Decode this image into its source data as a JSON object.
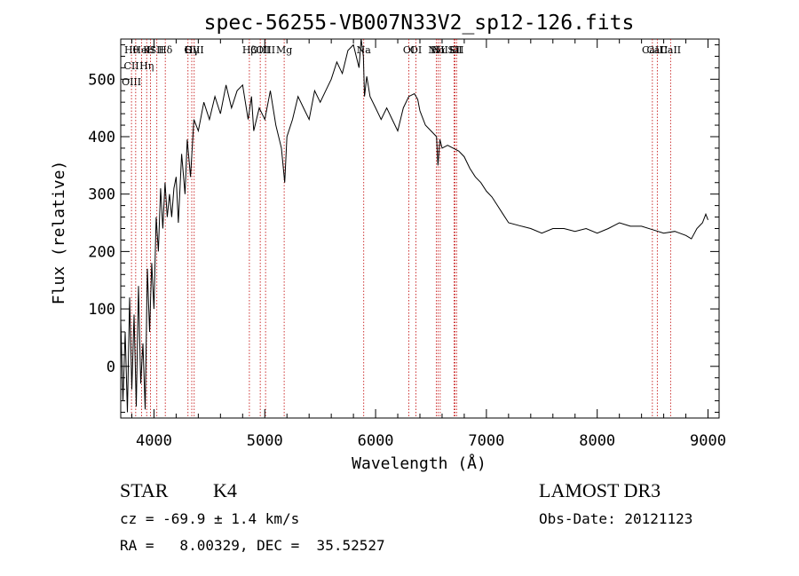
{
  "chart_data": {
    "type": "line",
    "title": "spec-56255-VB007N33V2_sp12-126.fits",
    "xlabel": "Wavelength (Å)",
    "ylabel": "Flux (relative)",
    "xlim": [
      3700,
      9100
    ],
    "ylim": [
      -90,
      570
    ],
    "xticks": [
      4000,
      5000,
      6000,
      7000,
      8000,
      9000
    ],
    "yticks": [
      0,
      100,
      200,
      300,
      400,
      500
    ],
    "grid": false,
    "line_color": "#000000",
    "marker_color": "#c00000",
    "series": [
      {
        "x": [
          3700,
          3720,
          3740,
          3760,
          3780,
          3800,
          3820,
          3840,
          3860,
          3880,
          3900,
          3920,
          3940,
          3960,
          3980,
          4000,
          4020,
          4040,
          4060,
          4080,
          4100,
          4120,
          4140,
          4160,
          4180,
          4200,
          4220,
          4250,
          4280,
          4300,
          4330,
          4360,
          4400,
          4450,
          4500,
          4550,
          4600,
          4650,
          4700,
          4750,
          4800,
          4850,
          4880,
          4900,
          4950,
          5000,
          5050,
          5100,
          5150,
          5180,
          5200,
          5250,
          5300,
          5350,
          5400,
          5450,
          5500,
          5550,
          5600,
          5650,
          5700,
          5750,
          5800,
          5850,
          5870,
          5890,
          5900,
          5920,
          5950,
          6000,
          6050,
          6100,
          6150,
          6200,
          6250,
          6300,
          6350,
          6380,
          6400,
          6450,
          6500,
          6550,
          6563,
          6580,
          6600,
          6650,
          6700,
          6750,
          6800,
          6850,
          6900,
          6950,
          7000,
          7050,
          7100,
          7150,
          7200,
          7300,
          7400,
          7500,
          7600,
          7700,
          7800,
          7900,
          8000,
          8100,
          8200,
          8300,
          8400,
          8500,
          8600,
          8700,
          8800,
          8850,
          8900,
          8950,
          8980,
          9000
        ],
        "y": [
          80,
          -60,
          60,
          -80,
          120,
          -40,
          90,
          -70,
          140,
          -30,
          40,
          -75,
          170,
          60,
          180,
          100,
          260,
          200,
          310,
          240,
          320,
          260,
          300,
          260,
          310,
          330,
          250,
          370,
          300,
          395,
          330,
          430,
          410,
          460,
          430,
          470,
          440,
          490,
          450,
          480,
          490,
          430,
          470,
          410,
          450,
          430,
          480,
          420,
          380,
          320,
          400,
          430,
          470,
          450,
          430,
          480,
          460,
          480,
          500,
          530,
          510,
          550,
          560,
          520,
          570,
          540,
          470,
          505,
          470,
          450,
          430,
          450,
          430,
          410,
          450,
          470,
          475,
          465,
          445,
          420,
          410,
          400,
          350,
          395,
          380,
          385,
          380,
          375,
          365,
          345,
          330,
          320,
          305,
          295,
          280,
          265,
          250,
          245,
          240,
          232,
          240,
          240,
          235,
          240,
          232,
          240,
          250,
          244,
          244,
          238,
          232,
          235,
          228,
          222,
          240,
          250,
          265,
          255
        ]
      }
    ],
    "lines": [
      {
        "x": 3797,
        "labels": [
          "Hθ",
          "CII",
          "OIII"
        ]
      },
      {
        "x": 3835,
        "labels": []
      },
      {
        "x": 3889,
        "labels": [
          "HeI"
        ]
      },
      {
        "x": 3934,
        "labels": [
          "K",
          "Hη"
        ]
      },
      {
        "x": 3969,
        "labels": [
          "H"
        ]
      },
      {
        "x": 4026,
        "labels": [
          "SII"
        ]
      },
      {
        "x": 4102,
        "labels": [
          "Hδ"
        ]
      },
      {
        "x": 4307,
        "labels": [
          "G"
        ]
      },
      {
        "x": 4341,
        "labels": [
          "Hγ"
        ]
      },
      {
        "x": 4363,
        "labels": [
          "OIII"
        ]
      },
      {
        "x": 4861,
        "labels": [
          "Hβ"
        ]
      },
      {
        "x": 4959,
        "labels": [
          "OIII"
        ]
      },
      {
        "x": 5007,
        "labels": [
          "OIII"
        ]
      },
      {
        "x": 5175,
        "labels": [
          "Mg"
        ]
      },
      {
        "x": 5893,
        "labels": [
          "Na"
        ]
      },
      {
        "x": 6300,
        "labels": [
          "OI"
        ]
      },
      {
        "x": 6364,
        "labels": [
          "OI"
        ]
      },
      {
        "x": 6548,
        "labels": [
          "NII"
        ]
      },
      {
        "x": 6563,
        "labels": [
          "Hα"
        ]
      },
      {
        "x": 6583,
        "labels": [
          "NII"
        ]
      },
      {
        "x": 6708,
        "labels": [
          "Li"
        ]
      },
      {
        "x": 6716,
        "labels": [
          "SII"
        ]
      },
      {
        "x": 6731,
        "labels": [
          "SII"
        ]
      },
      {
        "x": 8498,
        "labels": [
          "CaII"
        ]
      },
      {
        "x": 8542,
        "labels": [
          "CaII"
        ]
      },
      {
        "x": 8662,
        "labels": [
          "CaII"
        ]
      }
    ]
  },
  "info": {
    "class_label": "STAR",
    "subclass": "K4",
    "redshift": "cz = -69.9 ± 1.4 km/s",
    "coords": "RA =   8.00329, DEC =  35.52527",
    "survey": "LAMOST DR3",
    "obs_date": "Obs-Date: 20121123"
  }
}
